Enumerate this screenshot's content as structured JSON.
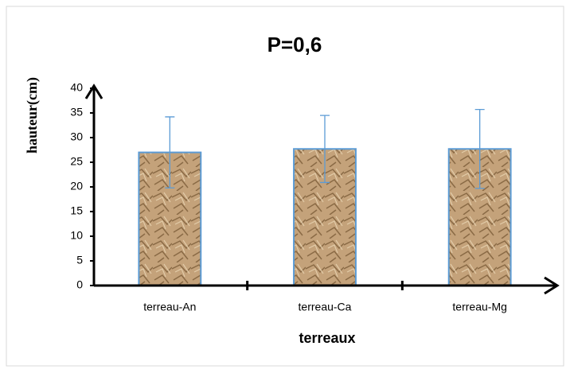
{
  "chart_data": {
    "type": "bar",
    "title": "P=0,6",
    "x_label": "terreaux",
    "y_label": "hauteur(cm)",
    "categories": [
      "terreau-An",
      "terreau-Ca",
      "terreau-Mg"
    ],
    "values": [
      27,
      27.7,
      27.7
    ],
    "errors": [
      7.2,
      6.8,
      8
    ],
    "color": "#c4a27a",
    "error_color": "#5b9bd5",
    "ylim": [
      0,
      40
    ],
    "yticks": [
      0,
      5,
      10,
      15,
      20,
      25,
      30,
      35,
      40
    ],
    "grid": false
  }
}
